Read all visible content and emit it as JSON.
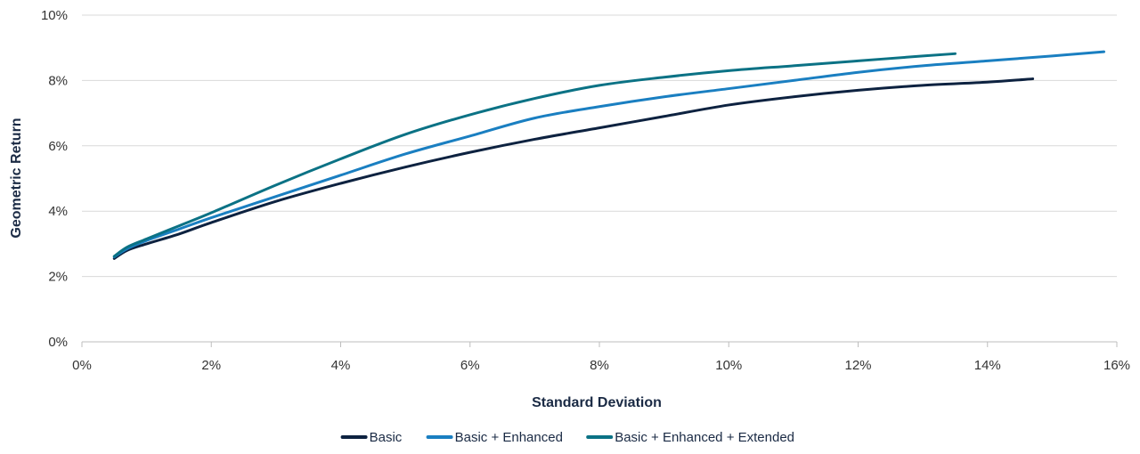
{
  "chart_data": {
    "type": "line",
    "title": "",
    "xlabel": "Standard Deviation",
    "ylabel": "Geometric Return",
    "xlim": [
      0,
      16
    ],
    "ylim": [
      0,
      10
    ],
    "x_ticks": [
      0,
      2,
      4,
      6,
      8,
      10,
      12,
      14,
      16
    ],
    "y_ticks": [
      0,
      2,
      4,
      6,
      8,
      10
    ],
    "x_tick_labels": [
      "0%",
      "2%",
      "4%",
      "6%",
      "8%",
      "10%",
      "12%",
      "14%",
      "16%"
    ],
    "y_tick_labels": [
      "0%",
      "2%",
      "4%",
      "6%",
      "8%",
      "10%"
    ],
    "grid": "horizontal",
    "legend_position": "bottom",
    "series": [
      {
        "name": "Basic",
        "color": "#0d2240",
        "x": [
          0.5,
          0.7,
          1.0,
          1.5,
          2.0,
          3.0,
          4.0,
          5.0,
          6.0,
          7.0,
          8.0,
          9.0,
          10.0,
          11.0,
          12.0,
          13.0,
          14.0,
          14.7
        ],
        "y": [
          2.55,
          2.8,
          3.0,
          3.3,
          3.65,
          4.3,
          4.85,
          5.35,
          5.8,
          6.2,
          6.55,
          6.9,
          7.25,
          7.5,
          7.7,
          7.85,
          7.95,
          8.05
        ]
      },
      {
        "name": "Basic + Enhanced",
        "color": "#1a7fc1",
        "x": [
          0.5,
          0.7,
          1.0,
          1.5,
          2.0,
          3.0,
          4.0,
          5.0,
          6.0,
          7.0,
          8.0,
          9.0,
          10.0,
          11.0,
          12.0,
          13.0,
          14.0,
          15.0,
          15.8
        ],
        "y": [
          2.6,
          2.85,
          3.1,
          3.45,
          3.8,
          4.45,
          5.1,
          5.75,
          6.3,
          6.85,
          7.2,
          7.5,
          7.75,
          8.0,
          8.25,
          8.45,
          8.6,
          8.75,
          8.88
        ]
      },
      {
        "name": "Basic + Enhanced + Extended",
        "color": "#0b7285",
        "x": [
          0.5,
          0.7,
          1.0,
          1.5,
          2.0,
          3.0,
          4.0,
          5.0,
          6.0,
          7.0,
          8.0,
          9.0,
          10.0,
          11.0,
          12.0,
          13.0,
          13.5
        ],
        "y": [
          2.62,
          2.9,
          3.15,
          3.55,
          3.95,
          4.8,
          5.6,
          6.35,
          6.95,
          7.45,
          7.85,
          8.1,
          8.3,
          8.45,
          8.6,
          8.75,
          8.82
        ]
      }
    ]
  }
}
